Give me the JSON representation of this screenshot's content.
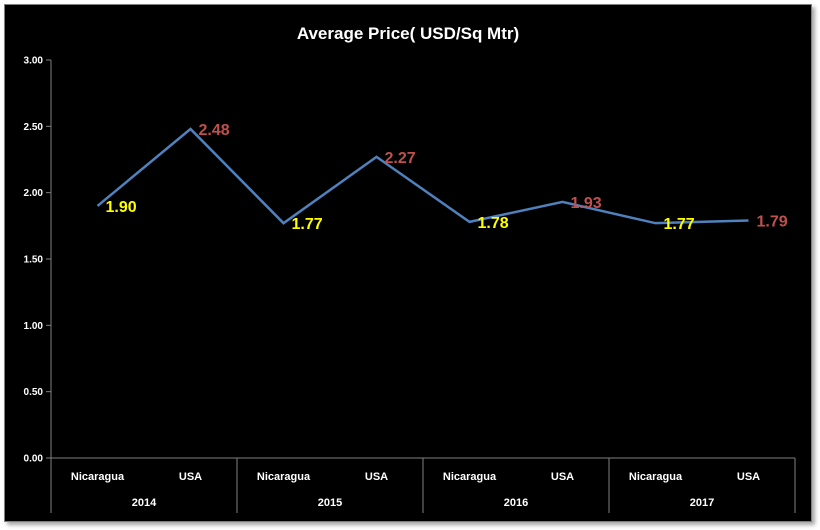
{
  "chart_data": {
    "type": "line",
    "title": "Average Price( USD/Sq Mtr)",
    "xlabel": "",
    "ylabel": "",
    "ylim": [
      0,
      3
    ],
    "y_ticks": [
      "0.00",
      "0.50",
      "1.00",
      "1.50",
      "2.00",
      "2.50",
      "3.00"
    ],
    "grid": false,
    "legend": "none",
    "groups": [
      {
        "label": "2014",
        "categories": [
          "Nicaragua",
          "USA"
        ]
      },
      {
        "label": "2015",
        "categories": [
          "Nicaragua",
          "USA"
        ]
      },
      {
        "label": "2016",
        "categories": [
          "Nicaragua",
          "USA"
        ]
      },
      {
        "label": "2017",
        "categories": [
          "Nicaragua",
          "USA"
        ]
      }
    ],
    "series": [
      {
        "values": [
          1.9,
          2.48,
          1.77,
          2.27,
          1.78,
          1.93,
          1.77,
          1.79
        ],
        "data_labels": [
          "1.90",
          "2.48",
          "1.77",
          "2.27",
          "1.78",
          "1.93",
          "1.77",
          "1.79"
        ],
        "color": "#4f81bd"
      }
    ],
    "label_colors": {
      "Nicaragua": "#ffff00",
      "USA": "#c0504d"
    }
  }
}
